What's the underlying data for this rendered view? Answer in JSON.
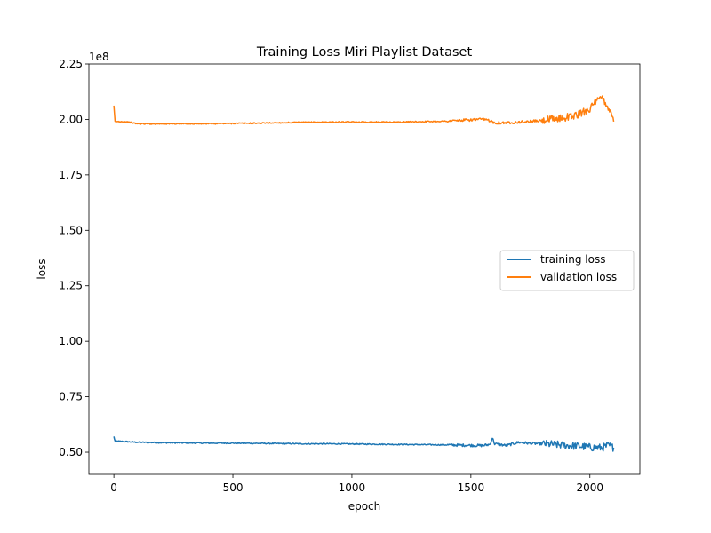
{
  "chart_data": {
    "type": "line",
    "title": "Training Loss Miri Playlist Dataset",
    "xlabel": "epoch",
    "ylabel": "loss",
    "y_offset_text": "1e8",
    "xlim": [
      -105,
      2210
    ],
    "ylim": [
      0.4,
      2.25
    ],
    "y_scale_factor": 100000000,
    "xticks": [
      0,
      500,
      1000,
      1500,
      2000
    ],
    "xtick_labels": [
      "0",
      "500",
      "1000",
      "1500",
      "2000"
    ],
    "yticks": [
      0.5,
      0.75,
      1.0,
      1.25,
      1.5,
      1.75,
      2.0,
      2.25
    ],
    "ytick_labels": [
      "0.50",
      "0.75",
      "1.00",
      "1.25",
      "1.50",
      "1.75",
      "2.00",
      "2.25"
    ],
    "grid": false,
    "legend_position": "center-right",
    "series": [
      {
        "name": "training loss",
        "color": "#1f77b4",
        "x": [
          0,
          5,
          10,
          50,
          100,
          200,
          300,
          400,
          500,
          600,
          700,
          800,
          900,
          1000,
          1100,
          1200,
          1300,
          1400,
          1450,
          1500,
          1550,
          1580,
          1590,
          1600,
          1650,
          1700,
          1750,
          1800,
          1850,
          1900,
          1950,
          2000,
          2050,
          2080,
          2100
        ],
        "y": [
          0.57,
          0.55,
          0.55,
          0.548,
          0.545,
          0.543,
          0.542,
          0.541,
          0.541,
          0.54,
          0.539,
          0.538,
          0.538,
          0.537,
          0.536,
          0.535,
          0.534,
          0.533,
          0.532,
          0.531,
          0.53,
          0.535,
          0.565,
          0.538,
          0.53,
          0.545,
          0.54,
          0.538,
          0.535,
          0.53,
          0.528,
          0.522,
          0.52,
          0.53,
          0.52
        ]
      },
      {
        "name": "validation loss",
        "color": "#ff7f0e",
        "x": [
          0,
          5,
          10,
          50,
          100,
          200,
          300,
          400,
          500,
          600,
          700,
          800,
          900,
          1000,
          1100,
          1200,
          1300,
          1400,
          1450,
          1500,
          1550,
          1580,
          1600,
          1650,
          1700,
          1750,
          1800,
          1850,
          1900,
          1950,
          2000,
          2050,
          2080,
          2100
        ],
        "y": [
          2.06,
          1.99,
          1.99,
          1.99,
          1.98,
          1.98,
          1.98,
          1.98,
          1.982,
          1.983,
          1.985,
          1.987,
          1.988,
          1.988,
          1.988,
          1.988,
          1.99,
          1.992,
          1.995,
          1.998,
          2.0,
          1.995,
          1.985,
          1.985,
          1.988,
          1.99,
          1.995,
          2.0,
          2.01,
          2.02,
          2.05,
          2.1,
          2.05,
          1.99
        ]
      }
    ]
  }
}
